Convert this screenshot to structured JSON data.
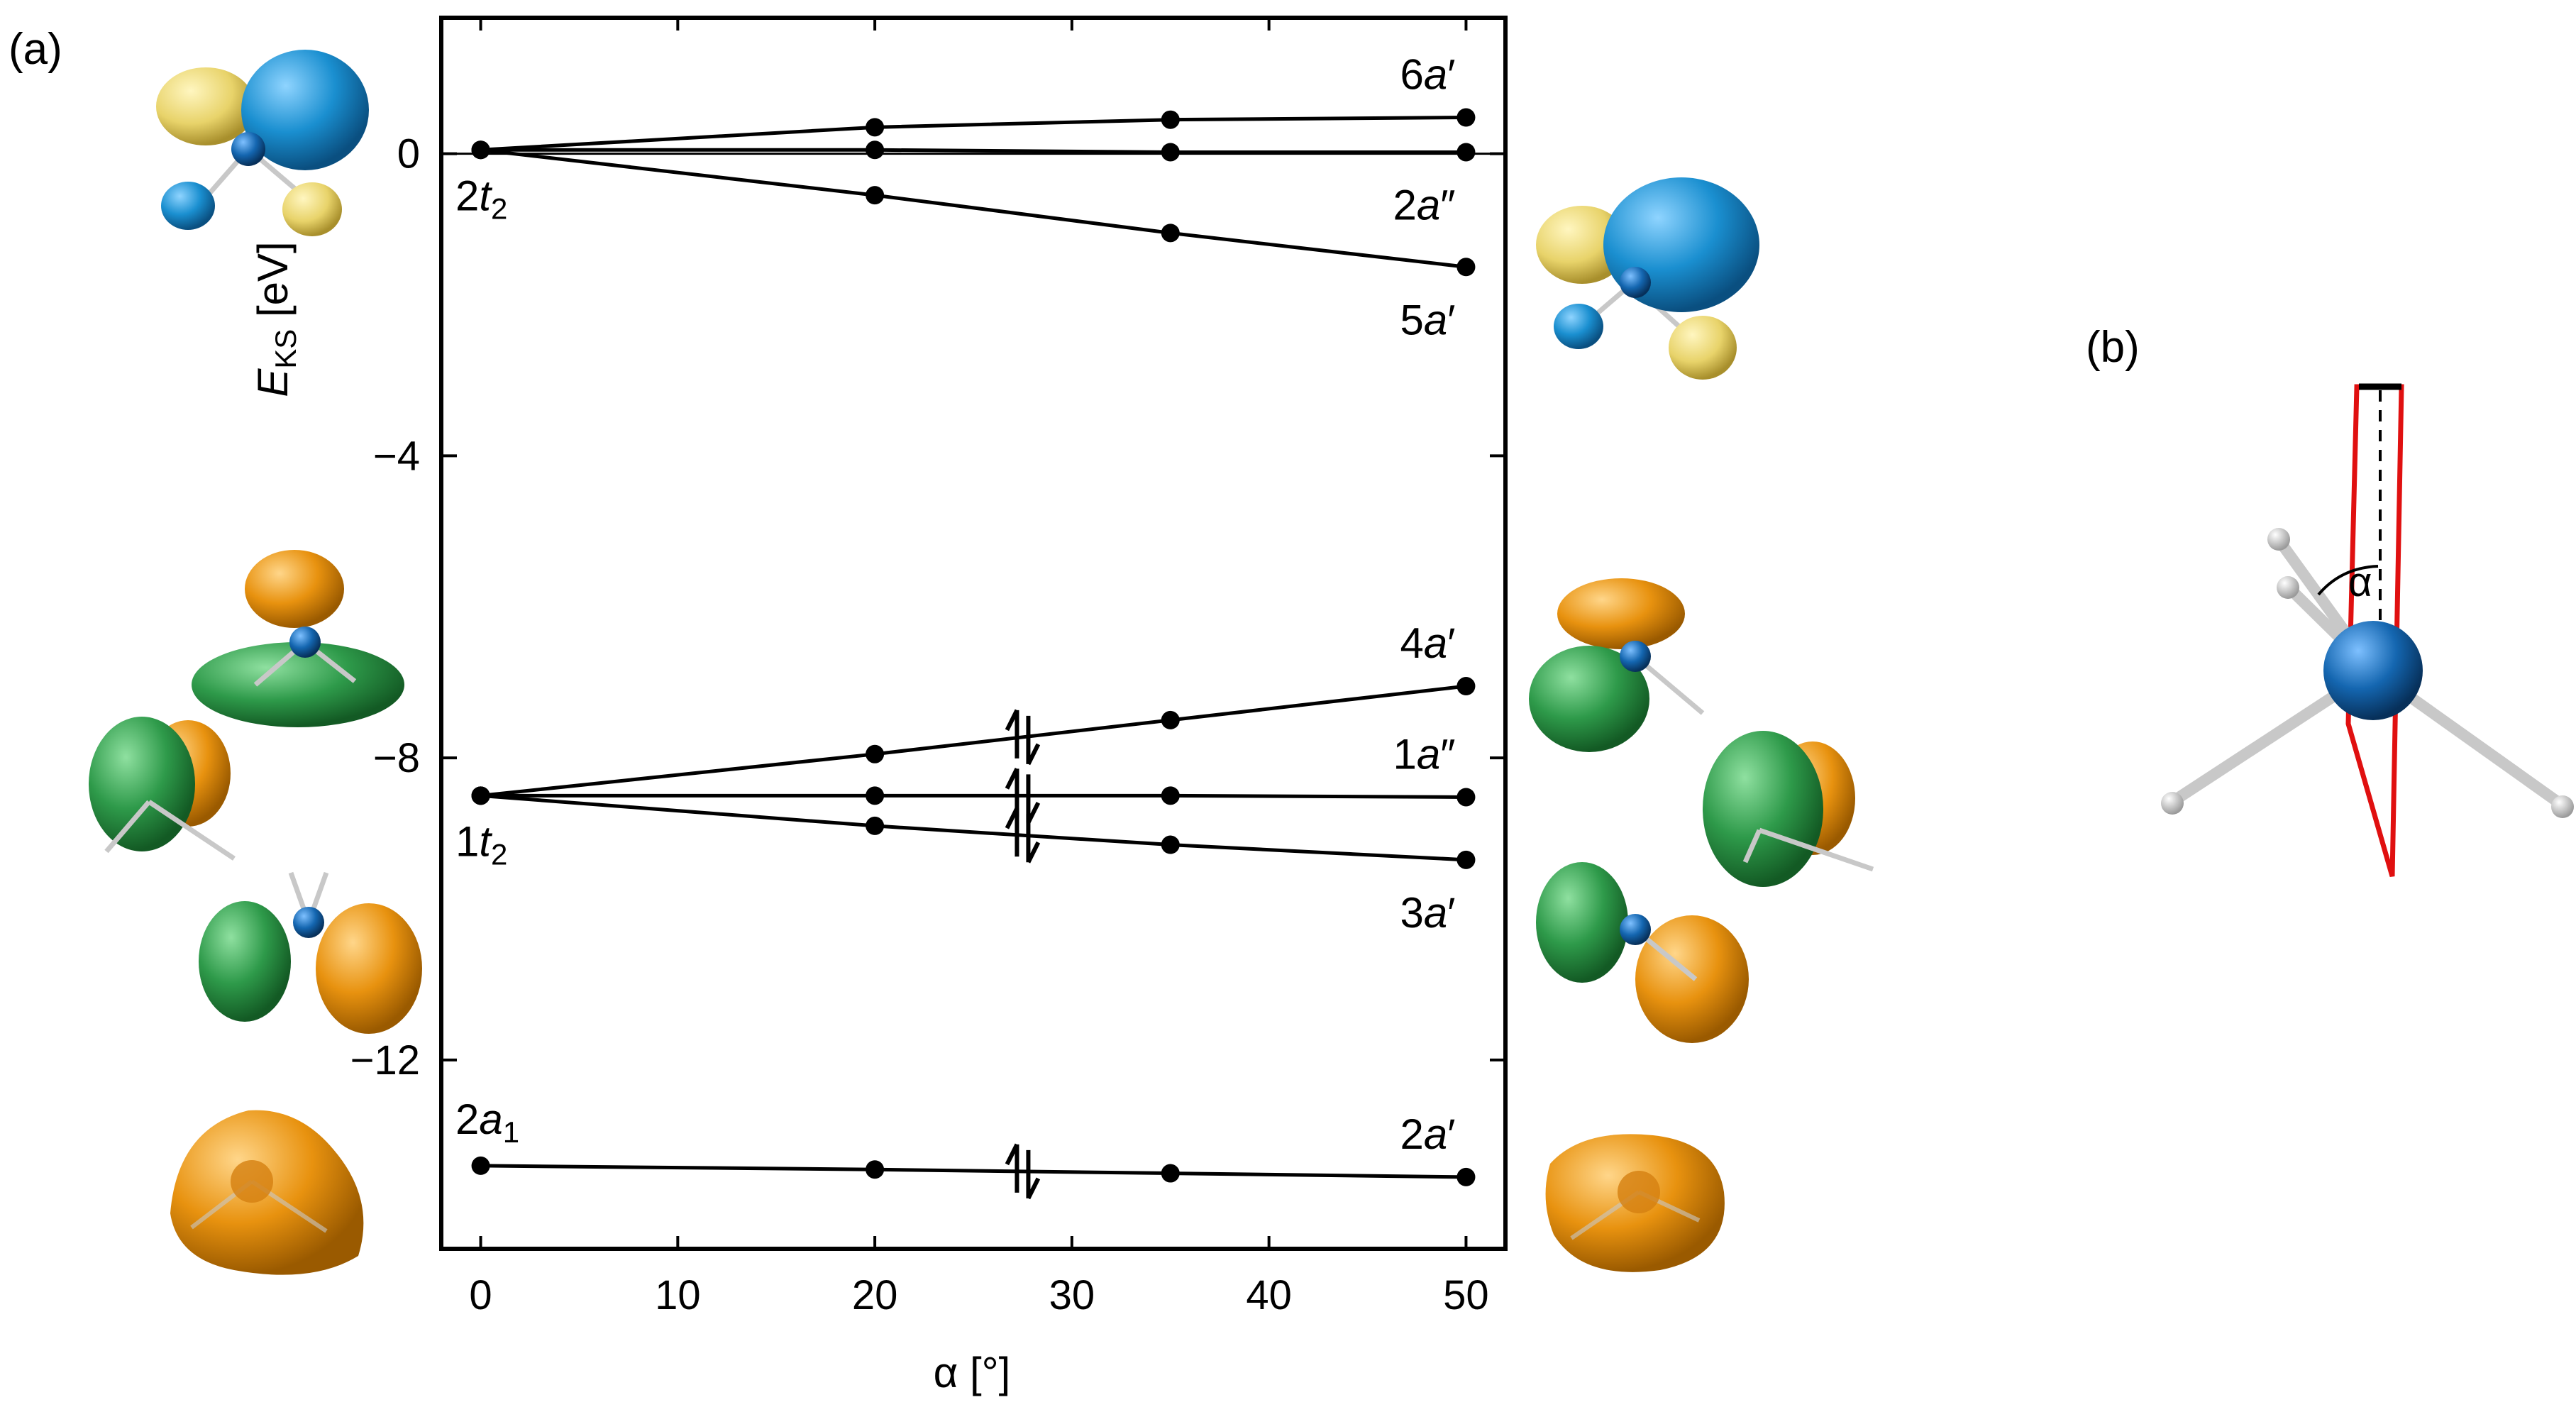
{
  "panels": {
    "a": "(a)",
    "b": "(b)"
  },
  "chart_data": {
    "type": "line",
    "xlabel": "α [°]",
    "ylabel": "E_KS [eV]",
    "ylabel_main": "E",
    "ylabel_sub": "KS",
    "ylabel_unit": " [eV]",
    "xlim": [
      -2,
      52
    ],
    "ylim": [
      -14.5,
      1.8
    ],
    "xticks": [
      0,
      10,
      20,
      30,
      40,
      50
    ],
    "yticks": [
      0,
      -4,
      -8,
      -12
    ],
    "ytick_labels": [
      "0",
      "−4",
      "−8",
      "−12"
    ],
    "x": [
      0,
      20,
      35,
      50
    ],
    "reference_line_y": 0,
    "series": [
      {
        "label_main": "6",
        "label_italic": "a",
        "label_prime": "′",
        "values": [
          0.05,
          0.35,
          0.45,
          0.48
        ]
      },
      {
        "label_main": "2",
        "label_italic": "a",
        "label_prime": "″",
        "values": [
          0.05,
          0.05,
          0.02,
          0.02
        ]
      },
      {
        "label_main": "5",
        "label_italic": "a",
        "label_prime": "′",
        "values": [
          0.05,
          -0.55,
          -1.05,
          -1.5
        ]
      },
      {
        "label_main": "4",
        "label_italic": "a",
        "label_prime": "′",
        "values": [
          -8.5,
          -7.95,
          -7.5,
          -7.05
        ]
      },
      {
        "label_main": "1",
        "label_italic": "a",
        "label_prime": "″",
        "values": [
          -8.5,
          -8.5,
          -8.5,
          -8.52
        ]
      },
      {
        "label_main": "3",
        "label_italic": "a",
        "label_prime": "′",
        "values": [
          -8.5,
          -8.9,
          -9.15,
          -9.35
        ]
      },
      {
        "label_main": "2",
        "label_italic": "a",
        "label_prime": "′",
        "values": [
          -13.4,
          -13.45,
          -13.5,
          -13.55
        ]
      }
    ],
    "left_labels": [
      {
        "main": "2",
        "italic": "t",
        "sub": "2",
        "y": 0.05
      },
      {
        "main": "1",
        "italic": "t",
        "sub": "2",
        "y": -8.5
      },
      {
        "main": "2",
        "italic": "a",
        "sub": "1",
        "y": -13.4
      }
    ],
    "occupation_arrows_x": 27.5
  },
  "colors": {
    "line": "#000000",
    "orbital_yellow": "#e8d36a",
    "orbital_blue": "#1a8fd0",
    "orbital_green": "#2e9a4a",
    "orbital_orange": "#e8920f",
    "atom_blue": "#1466b0",
    "bond_grey": "#c8c8c8",
    "plane_red": "#e01010"
  }
}
